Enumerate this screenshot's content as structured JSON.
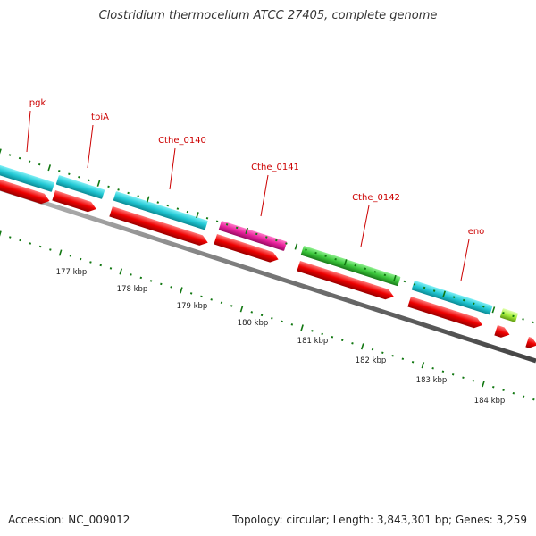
{
  "title": "Clostridium thermocellum ATCC 27405, complete genome",
  "footer": {
    "accession": "Accession: NC_009012",
    "topology": "Topology: circular; Length: 3,843,301 bp; Genes: 3,259"
  },
  "gene_labels": [
    {
      "id": "pgk",
      "text": "pgk",
      "color": "#cc0000"
    },
    {
      "id": "tpia",
      "text": "tpiA",
      "color": "#cc0000"
    },
    {
      "id": "cthe-0140",
      "text": "Cthe_0140",
      "color": "#cc0000"
    },
    {
      "id": "cthe-0141",
      "text": "Cthe_0141",
      "color": "#cc0000"
    },
    {
      "id": "cthe-0142",
      "text": "Cthe_0142",
      "color": "#cc0000"
    },
    {
      "id": "eno",
      "text": "eno",
      "color": "#cc0000"
    }
  ],
  "scale_labels": [
    "177 kbp",
    "178 kbp",
    "179 kbp",
    "180 kbp",
    "181 kbp",
    "182 kbp",
    "183 kbp",
    "184 kbp"
  ],
  "colors": {
    "cds": "#ee0000",
    "cyan_feature": "#22c8d4",
    "magenta_feature": "#e8219c",
    "green_feature": "#3cc83c",
    "lime_feature": "#a8f03c",
    "backbone": "#777777",
    "tick": "#117711"
  }
}
